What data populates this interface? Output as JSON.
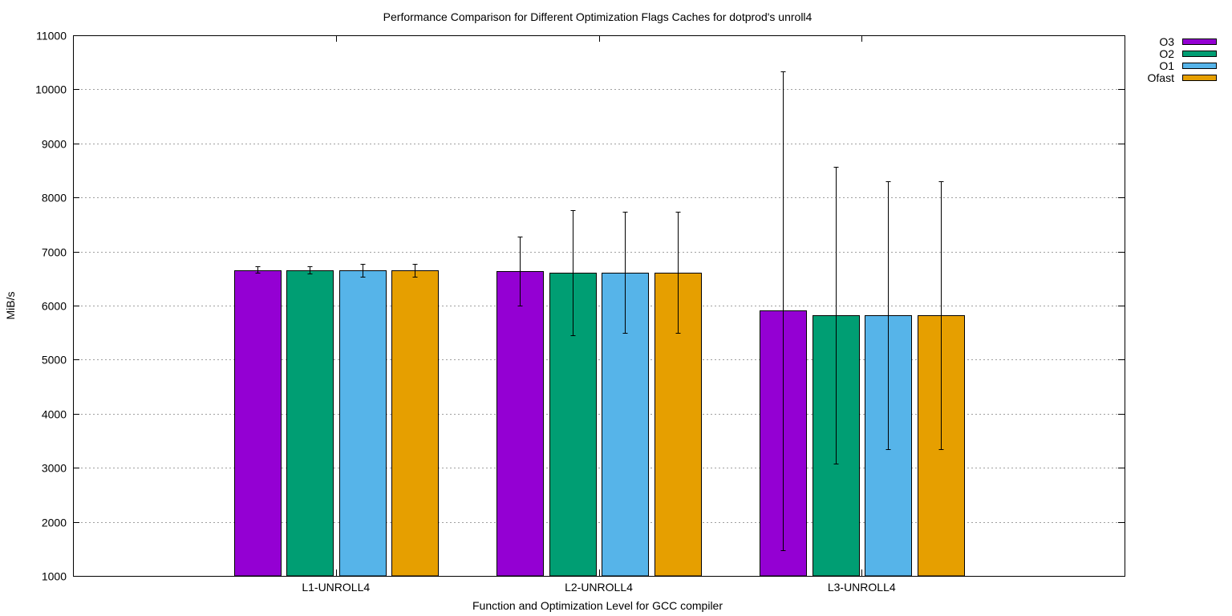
{
  "chart_data": {
    "type": "bar",
    "title": "Performance Comparison for Different Optimization Flags  Caches for dotprod's unroll4",
    "xlabel": "Function and Optimization Level for GCC compiler",
    "ylabel": "MiB/s",
    "ylim": [
      1000,
      11000
    ],
    "yticks": [
      1000,
      2000,
      3000,
      4000,
      5000,
      6000,
      7000,
      8000,
      9000,
      10000,
      11000
    ],
    "grid": true,
    "legend_position": "top-right outside",
    "categories": [
      "L1-UNROLL4",
      "L2-UNROLL4",
      "L3-UNROLL4"
    ],
    "series": [
      {
        "name": "O3",
        "color": "#9400d3",
        "values": [
          6660,
          6640,
          5910
        ],
        "error_low": [
          6610,
          6000,
          1480
        ],
        "error_high": [
          6720,
          7270,
          10330
        ]
      },
      {
        "name": "O2",
        "color": "#009e73",
        "values": [
          6660,
          6610,
          5820
        ],
        "error_low": [
          6590,
          5450,
          3070
        ],
        "error_high": [
          6720,
          7770,
          8570
        ]
      },
      {
        "name": "O1",
        "color": "#56b4e9",
        "values": [
          6650,
          6610,
          5820
        ],
        "error_low": [
          6540,
          5490,
          3350
        ],
        "error_high": [
          6770,
          7730,
          8300
        ]
      },
      {
        "name": "Ofast",
        "color": "#e69f00",
        "values": [
          6650,
          6610,
          5820
        ],
        "error_low": [
          6530,
          5490,
          3350
        ],
        "error_high": [
          6770,
          7730,
          8300
        ]
      }
    ]
  }
}
